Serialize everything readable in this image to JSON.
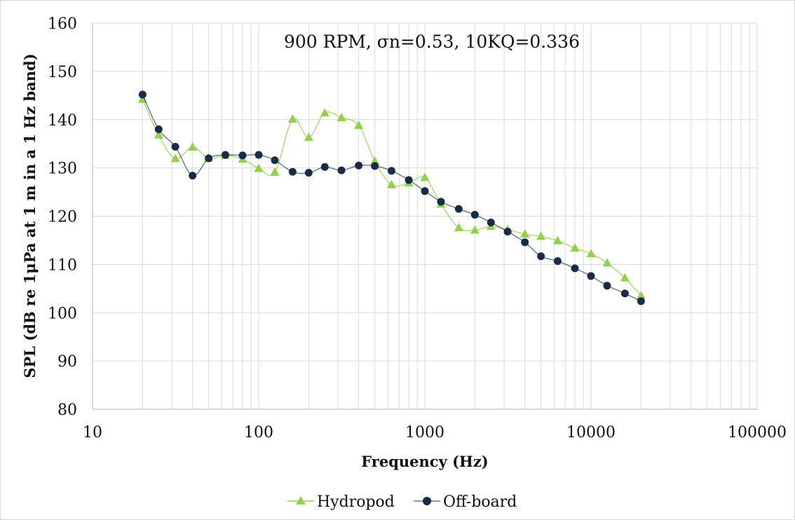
{
  "chart_data": {
    "type": "line",
    "title": "900 RPM, σn=0.53, 10KQ=0.336",
    "xlabel": "Frequency (Hz)",
    "ylabel": "SPL (dB re 1μPa at 1 m in a 1 Hz band)",
    "x_scale": "log",
    "xlim": [
      10,
      100000
    ],
    "ylim": [
      80,
      160
    ],
    "x_ticks": [
      "10",
      "100",
      "1000",
      "10000",
      "100000"
    ],
    "y_ticks": [
      "80",
      "90",
      "100",
      "110",
      "120",
      "130",
      "140",
      "150",
      "160"
    ],
    "grid": true,
    "legend_position": "bottom",
    "x": [
      20,
      25,
      31.5,
      40,
      50,
      63,
      80,
      100,
      125,
      160,
      200,
      250,
      315,
      400,
      500,
      630,
      800,
      1000,
      1250,
      1600,
      2000,
      2500,
      3150,
      4000,
      5000,
      6300,
      8000,
      10000,
      12500,
      16000,
      20000
    ],
    "series": [
      {
        "name": "Hydropod",
        "color": "#92d050",
        "marker": "triangle",
        "values": [
          144.2,
          136.8,
          131.9,
          134.3,
          132.0,
          132.6,
          131.8,
          129.9,
          129.1,
          140.1,
          136.3,
          141.4,
          140.4,
          138.8,
          131.4,
          126.5,
          126.9,
          128.0,
          122.5,
          117.6,
          117.1,
          117.9,
          117.2,
          116.3,
          115.8,
          114.9,
          113.4,
          112.2,
          110.3,
          107.2,
          103.5
        ]
      },
      {
        "name": "Off-board",
        "color": "#1a2b47",
        "marker": "circle",
        "values": [
          145.2,
          138.0,
          134.4,
          128.4,
          132.0,
          132.7,
          132.6,
          132.7,
          131.6,
          129.2,
          129.0,
          130.2,
          129.5,
          130.5,
          130.4,
          129.4,
          127.5,
          125.2,
          123.0,
          121.5,
          120.3,
          118.7,
          116.8,
          114.6,
          111.7,
          110.7,
          109.2,
          107.6,
          105.6,
          104.0,
          102.4
        ]
      }
    ]
  }
}
